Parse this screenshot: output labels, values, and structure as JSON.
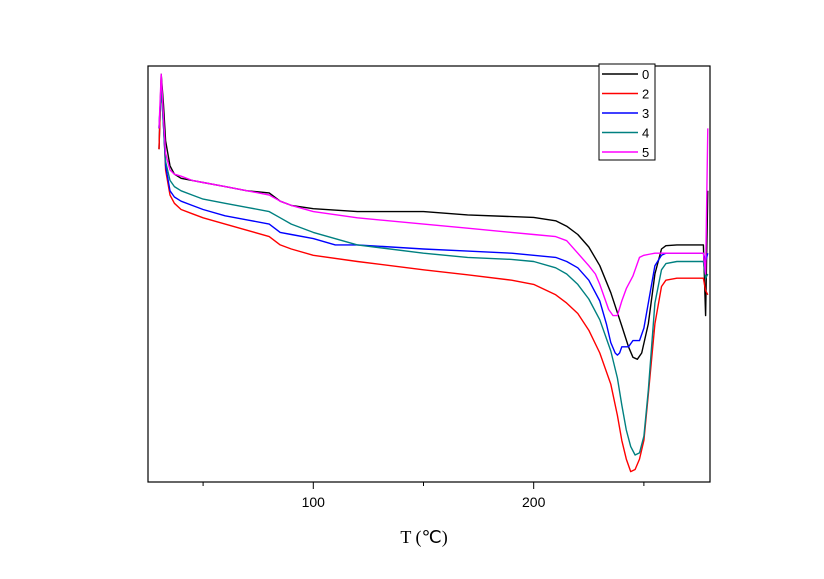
{
  "chart_data": {
    "type": "line",
    "title": "",
    "xlabel": "T (℃)",
    "ylabel": "",
    "xlim": [
      25,
      280
    ],
    "ylim": [
      0,
      100
    ],
    "x_ticks_major": [
      100,
      200
    ],
    "x_ticks_minor": [
      50,
      150,
      250
    ],
    "y_tick_labels": false,
    "grid": false,
    "legend": {
      "placement": "top-right",
      "entries": [
        "0",
        "2",
        "3",
        "4",
        "5"
      ]
    },
    "series": [
      {
        "name": "0",
        "color": "#000000",
        "x": [
          30,
          31,
          32,
          33,
          35,
          37,
          40,
          45,
          50,
          60,
          70,
          80,
          85,
          90,
          100,
          120,
          150,
          170,
          190,
          200,
          210,
          215,
          220,
          225,
          230,
          235,
          240,
          243,
          245,
          247,
          249,
          252,
          255,
          258,
          260,
          265,
          270,
          275,
          277,
          278,
          279
        ],
        "y": [
          80,
          98,
          91,
          82,
          76,
          74,
          73,
          72.5,
          72,
          71,
          70,
          69.5,
          67.5,
          66.5,
          65.7,
          65,
          65,
          64.2,
          63.8,
          63.6,
          62.8,
          61.5,
          59.5,
          56.5,
          52,
          45.5,
          37.5,
          32.5,
          30,
          29.5,
          31,
          38,
          50,
          56,
          56.8,
          57,
          57,
          57,
          57,
          40,
          70
        ]
      },
      {
        "name": "2",
        "color": "#ff0000",
        "x": [
          30,
          31,
          32,
          33,
          35,
          37,
          40,
          45,
          50,
          60,
          70,
          80,
          85,
          90,
          100,
          120,
          150,
          170,
          190,
          200,
          210,
          215,
          220,
          225,
          230,
          235,
          238,
          240,
          242,
          244,
          246,
          248,
          250,
          252,
          255,
          258,
          260,
          265,
          270,
          275,
          277,
          278,
          279
        ],
        "y": [
          80,
          97,
          87,
          75,
          69,
          67,
          65.5,
          64.5,
          63.5,
          62,
          60.5,
          59,
          57,
          56,
          54.5,
          53,
          51,
          49.8,
          48.5,
          47.5,
          45,
          43,
          40.5,
          36.5,
          31,
          23.5,
          16,
          10,
          5.5,
          2.5,
          3,
          5.5,
          10,
          21,
          38,
          47,
          48.5,
          49,
          49,
          49,
          49,
          46,
          45
        ]
      },
      {
        "name": "3",
        "color": "#0000ff",
        "x": [
          30,
          31,
          32,
          33,
          35,
          37,
          40,
          45,
          50,
          60,
          70,
          80,
          85,
          90,
          100,
          110,
          120,
          150,
          170,
          190,
          200,
          210,
          215,
          220,
          225,
          230,
          233,
          235,
          237,
          238,
          239,
          240,
          241,
          243,
          245,
          247,
          248,
          250,
          253,
          255,
          258,
          260,
          265,
          270,
          275,
          277,
          278,
          279
        ],
        "y": [
          85,
          95,
          86,
          76,
          70,
          68.5,
          67.5,
          66.5,
          65.5,
          64,
          63,
          62,
          60,
          59.5,
          58.5,
          57,
          57,
          56,
          55.5,
          55,
          54.5,
          54,
          53,
          51.5,
          48.5,
          43.5,
          38,
          33.5,
          31,
          30.5,
          31,
          32.5,
          32.5,
          32.5,
          34,
          34,
          34,
          37,
          46,
          52,
          54.5,
          55,
          55,
          55,
          55,
          55,
          53,
          55
        ]
      },
      {
        "name": "4",
        "color": "#008080",
        "x": [
          30,
          31,
          32,
          33,
          35,
          37,
          40,
          45,
          50,
          60,
          70,
          80,
          85,
          90,
          100,
          120,
          150,
          170,
          190,
          200,
          210,
          215,
          220,
          225,
          230,
          235,
          238,
          240,
          242,
          244,
          246,
          248,
          250,
          252,
          255,
          258,
          260,
          265,
          270,
          275,
          277,
          278,
          279
        ],
        "y": [
          85,
          95,
          86,
          77,
          72.5,
          71,
          70,
          69,
          68,
          67,
          66,
          65,
          63.5,
          62,
          60,
          57,
          55,
          54,
          53.5,
          53,
          51.5,
          50,
          47.5,
          44,
          39,
          31.5,
          25,
          18.5,
          12.5,
          8.5,
          6.5,
          7,
          11,
          22,
          43,
          51,
          52.5,
          53,
          53,
          53,
          53,
          49,
          50
        ]
      },
      {
        "name": "5",
        "color": "#ff00ff",
        "x": [
          30,
          31,
          32,
          33,
          35,
          37,
          40,
          45,
          50,
          60,
          70,
          80,
          85,
          90,
          100,
          120,
          150,
          170,
          190,
          200,
          210,
          215,
          220,
          225,
          228,
          230,
          232,
          234,
          236,
          238,
          240,
          242,
          245,
          248,
          250,
          253,
          255,
          260,
          265,
          270,
          275,
          277,
          278,
          279
        ],
        "y": [
          85,
          98,
          88,
          79,
          75,
          74,
          73.5,
          72.5,
          72,
          71,
          70,
          69,
          67.5,
          66.5,
          65,
          63.5,
          62,
          61,
          60,
          59.5,
          59,
          58,
          55,
          52,
          50,
          47.5,
          44.5,
          41.5,
          40,
          40,
          43.5,
          46.5,
          49.5,
          54,
          54.5,
          54.8,
          55,
          55,
          55,
          55,
          55,
          55,
          50,
          85
        ]
      }
    ]
  }
}
